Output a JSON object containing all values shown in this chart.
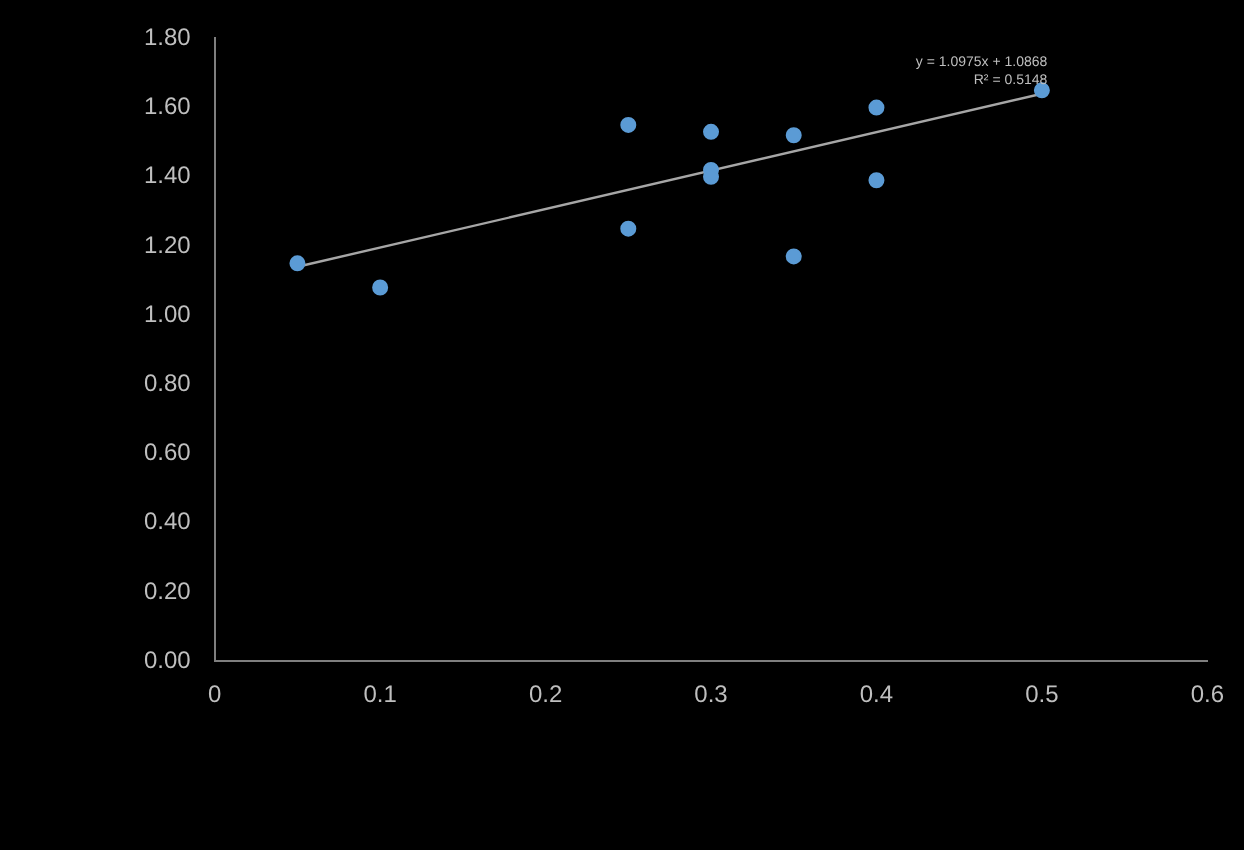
{
  "chart_data": {
    "type": "scatter",
    "x": [
      0.05,
      0.1,
      0.25,
      0.25,
      0.3,
      0.3,
      0.3,
      0.35,
      0.35,
      0.4,
      0.4,
      0.5
    ],
    "series": [
      {
        "color": "#5b9bd5",
        "marker": "circle",
        "values": [
          1.15,
          1.08,
          1.55,
          1.25,
          1.53,
          1.42,
          1.4,
          1.52,
          1.17,
          1.6,
          1.39,
          1.65
        ]
      },
      {
        "type": "line",
        "color": "#a6a6a6",
        "x": [
          0.05,
          0.5
        ],
        "values": [
          1.14,
          1.64
        ]
      }
    ],
    "xlim": [
      0,
      0.6
    ],
    "xticks": [
      0,
      0.1,
      0.2,
      0.3,
      0.4,
      0.5,
      0.6
    ],
    "ylim": [
      0,
      1.8
    ],
    "yticks": [
      {
        "value": 0,
        "label": "0.00"
      },
      {
        "value": 0.2,
        "label": "0.20"
      },
      {
        "value": 0.4,
        "label": "0.40"
      },
      {
        "value": 0.6,
        "label": "0.60"
      },
      {
        "value": 0.8,
        "label": "0.80"
      },
      {
        "value": 1,
        "label": "1.00"
      },
      {
        "value": 1.2,
        "label": "1.20"
      },
      {
        "value": 1.4,
        "label": "1.40"
      },
      {
        "value": 1.6,
        "label": "1.60"
      },
      {
        "value": 1.8,
        "label": "1.80"
      }
    ],
    "annotations": [
      "y = 1.0975x + 1.0868",
      "R² = 0.5148"
    ],
    "grid": false,
    "legend": false
  }
}
